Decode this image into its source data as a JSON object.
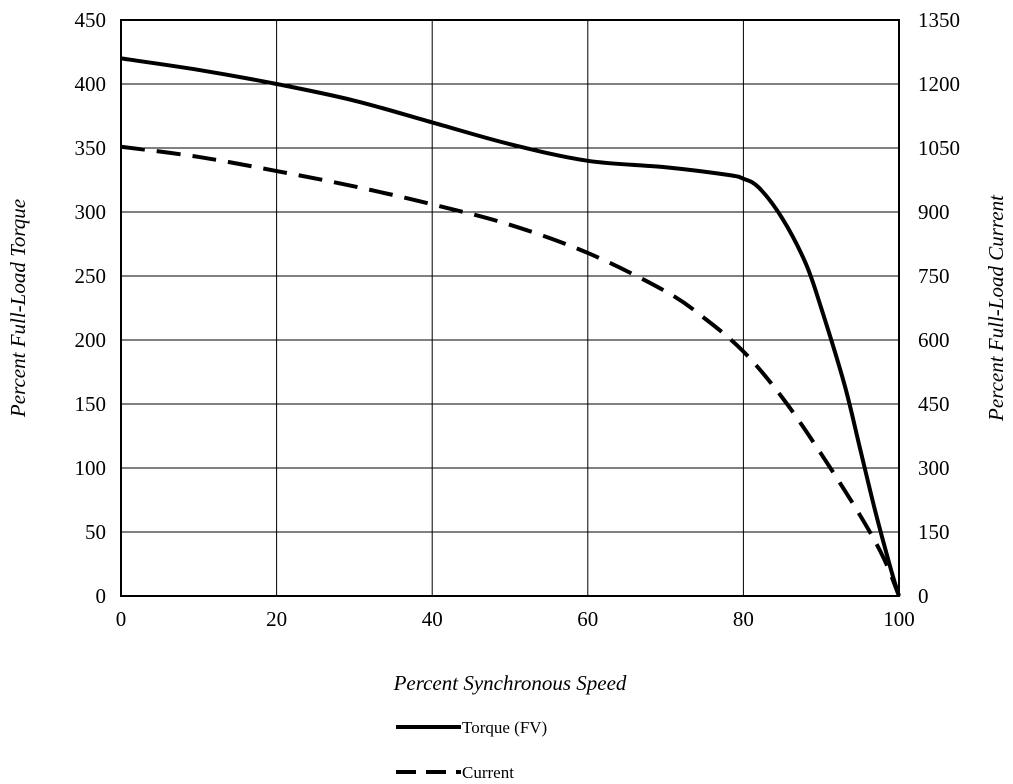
{
  "chart_data": {
    "type": "line",
    "xlabel": "Percent Synchronous Speed",
    "ylabel_left": "Percent Full-Load Torque",
    "ylabel_right": "Percent Full-Load Current",
    "xlim": [
      0,
      100
    ],
    "ylim_left": [
      0,
      450
    ],
    "ylim_right": [
      0,
      1350
    ],
    "x_ticks": [
      "0",
      "20",
      "40",
      "60",
      "80",
      "100"
    ],
    "y_ticks_left": [
      "0",
      "50",
      "100",
      "150",
      "200",
      "250",
      "300",
      "350",
      "400",
      "450"
    ],
    "y_ticks_right": [
      "0",
      "150",
      "300",
      "450",
      "600",
      "750",
      "900",
      "1050",
      "1200",
      "1350"
    ],
    "grid": true,
    "legend_position": "bottom",
    "series": [
      {
        "name": "Torque (FV)",
        "axis": "left",
        "line_style": "solid",
        "color": "#000000",
        "x": [
          0,
          10,
          20,
          30,
          40,
          50,
          60,
          70,
          78,
          80,
          82,
          85,
          88,
          90,
          93,
          95,
          97,
          99,
          100
        ],
        "y": [
          420,
          411,
          400,
          387,
          370,
          353,
          340,
          335,
          329,
          326,
          319,
          295,
          260,
          225,
          165,
          115,
          65,
          20,
          0
        ]
      },
      {
        "name": "Current",
        "axis": "right",
        "line_style": "dashed",
        "color": "#000000",
        "x": [
          0,
          10,
          20,
          30,
          40,
          50,
          60,
          70,
          75,
          80,
          85,
          90,
          95,
          98,
          100
        ],
        "y": [
          1053,
          1029,
          996,
          960,
          918,
          870,
          804,
          714,
          651,
          573,
          465,
          333,
          189,
          90,
          0
        ]
      }
    ]
  }
}
